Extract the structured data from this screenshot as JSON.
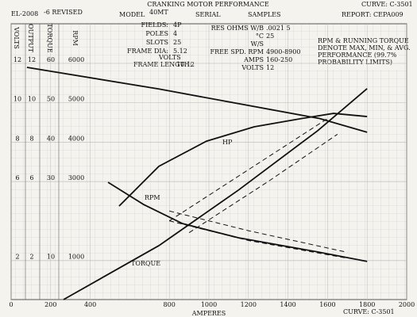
{
  "header": {
    "title": "CRANKING MOTOR PERFORMANCE",
    "curve_top": "CURVE: C-3501",
    "doc": "EL-2008",
    "revised": "-6 REVISED",
    "model_label": "MODEL",
    "model": "40MT",
    "serial_label": "SERIAL",
    "samples_label": "SAMPLES",
    "report": "REPORT: CEPA009",
    "specs": [
      [
        "FIELDS:",
        "4P"
      ],
      [
        "POLES",
        "4"
      ],
      [
        "SLOTS",
        "25"
      ],
      [
        "FRAME DIA:",
        "5.12"
      ],
      [
        "FRAME LENGTH:",
        "10.12"
      ]
    ],
    "specs2": [
      [
        "RES OHMS W/B",
        ".0021 5"
      ],
      [
        "°C",
        "25"
      ],
      [
        "W/S",
        ""
      ],
      [
        "FREE SPD. RPM",
        "4900-8900"
      ],
      [
        "AMPS",
        "160-250"
      ],
      [
        "VOLTS",
        "12"
      ]
    ],
    "note": [
      "RPM & RUNNING TORQUE",
      "DENOTE MAX, MIN, & AVG.",
      "PERFORMANCE (99.7%",
      "PROBABILITY LIMITS)"
    ],
    "curve_bottom": "CURVE: C-3501"
  },
  "chart_data": {
    "type": "line",
    "x_label": "AMPERES",
    "xlim": [
      0,
      2000
    ],
    "xticks": [
      0,
      200,
      400,
      800,
      1000,
      1200,
      1400,
      1600,
      1800,
      2000
    ],
    "grid": true,
    "y_axes": [
      {
        "name": "VOLTS",
        "lim": [
          0,
          12
        ],
        "ticks": [
          2,
          6,
          8,
          10,
          12
        ]
      },
      {
        "name": "OUTPUT",
        "lim": [
          0,
          12
        ],
        "ticks": [
          2,
          6,
          8,
          10,
          12
        ]
      },
      {
        "name": "TORQUE",
        "lim": [
          0,
          60
        ],
        "ticks": [
          10,
          30,
          40,
          50,
          60
        ]
      },
      {
        "name": "RPM",
        "lim": [
          0,
          6000
        ],
        "ticks": [
          1000,
          3000,
          4000,
          5000,
          6000
        ]
      }
    ],
    "series": [
      {
        "name": "VOLTS",
        "axis": 0,
        "color": "#111",
        "x": [
          80,
          747,
          1559,
          1800
        ],
        "values": [
          11.8,
          10.7,
          9.2,
          8.5
        ]
      },
      {
        "name": "HP",
        "axis": 1,
        "color": "#111",
        "x": [
          546,
          747,
          988,
          1229,
          1470,
          1630,
          1800
        ],
        "values": [
          4.75,
          6.77,
          8.05,
          8.78,
          9.2,
          9.46,
          9.3
        ]
      },
      {
        "name": "RPM",
        "axis": 3,
        "color": "#111",
        "x": [
          490,
          670,
          867,
          1149,
          1550,
          1800
        ],
        "values": [
          2980,
          2415,
          1930,
          1570,
          1210,
          970
        ]
      },
      {
        "name": "TORQUE",
        "axis": 2,
        "color": "#111",
        "x": [
          265,
          747,
          1149,
          1550,
          1800
        ],
        "values": [
          0,
          13.7,
          27.8,
          42.9,
          53.6
        ]
      },
      {
        "axis": 2,
        "color": "#111",
        "dash": true,
        "x": [
          800,
          1200,
          1600
        ],
        "values": [
          20,
          33,
          46
        ]
      },
      {
        "axis": 2,
        "color": "#111",
        "dash": true,
        "x": [
          900,
          1300,
          1650
        ],
        "values": [
          17,
          30,
          42
        ]
      },
      {
        "axis": 3,
        "color": "#111",
        "dash": true,
        "x": [
          800,
          1200,
          1700
        ],
        "values": [
          2250,
          1750,
          1200
        ]
      },
      {
        "axis": 3,
        "color": "#111",
        "dash": true,
        "x": [
          800,
          1200,
          1700
        ],
        "values": [
          2000,
          1500,
          1050
        ]
      }
    ]
  }
}
